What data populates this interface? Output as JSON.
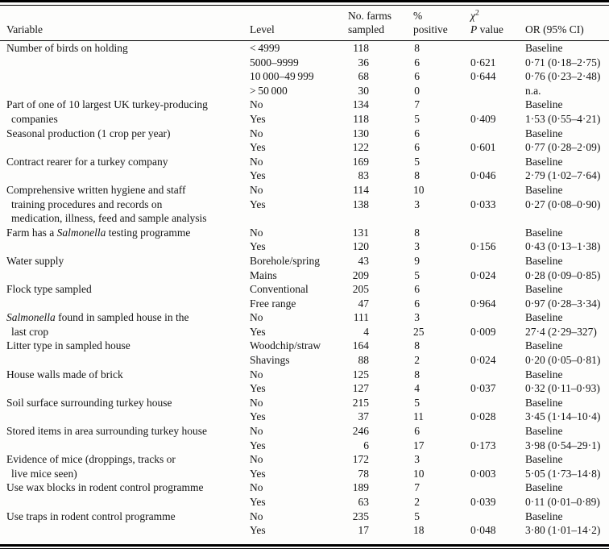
{
  "colors": {
    "paper": "#fdfdfc",
    "ink": "#151515",
    "rule": "#000000"
  },
  "table": {
    "header": {
      "variable": "Variable",
      "level": "Level",
      "farms_line1": "No. farms",
      "farms_line2": "sampled",
      "pct_line1": "%",
      "pct_line2": "positive",
      "chi_sq": [
        {
          "t": "χ",
          "i": true
        },
        {
          "t": "2",
          "sup": true
        }
      ],
      "p_value": [
        {
          "t": "P",
          "i": true
        },
        {
          "t": " value"
        }
      ],
      "or_ci": "OR (95% CI)"
    },
    "rows": [
      {
        "var": [
          {
            "t": "Number of birds on holding"
          }
        ],
        "level": "< 4999",
        "n": "118",
        "pct": "8",
        "p": "",
        "or": "Baseline"
      },
      {
        "var": [],
        "level": "5000–9999",
        "n": "36",
        "pct": "6",
        "p": "0·621",
        "or": "0·71 (0·18–2·75)"
      },
      {
        "var": [],
        "level": "10 000–49 999",
        "n": "68",
        "pct": "6",
        "p": "0·644",
        "or": "0·76 (0·23–2·48)"
      },
      {
        "var": [],
        "level": "> 50 000",
        "n": "30",
        "pct": "0",
        "p": "",
        "or": "n.a."
      },
      {
        "var": [
          {
            "t": "Part of one of 10 largest UK turkey-producing"
          }
        ],
        "level": "No",
        "n": "134",
        "pct": "7",
        "p": "",
        "or": "Baseline"
      },
      {
        "var": [
          {
            "t": "companies"
          }
        ],
        "cont": true,
        "level": "Yes",
        "n": "118",
        "pct": "5",
        "p": "0·409",
        "or": "1·53 (0·55–4·21)"
      },
      {
        "var": [
          {
            "t": "Seasonal production (1 crop per year)"
          }
        ],
        "level": "No",
        "n": "130",
        "pct": "6",
        "p": "",
        "or": "Baseline"
      },
      {
        "var": [],
        "level": "Yes",
        "n": "122",
        "pct": "6",
        "p": "0·601",
        "or": "0·77 (0·28–2·09)"
      },
      {
        "var": [
          {
            "t": "Contract rearer for a turkey company"
          }
        ],
        "level": "No",
        "n": "169",
        "pct": "5",
        "p": "",
        "or": "Baseline"
      },
      {
        "var": [],
        "level": "Yes",
        "n": "83",
        "pct": "8",
        "p": "0·046",
        "or": "2·79 (1·02–7·64)"
      },
      {
        "var": [
          {
            "t": "Comprehensive written hygiene and staff"
          }
        ],
        "level": "No",
        "n": "114",
        "pct": "10",
        "p": "",
        "or": "Baseline"
      },
      {
        "var": [
          {
            "t": "training procedures and records on"
          }
        ],
        "cont": true,
        "level": "Yes",
        "n": "138",
        "pct": "3",
        "p": "0·033",
        "or": "0·27 (0·08–0·90)"
      },
      {
        "var": [
          {
            "t": "medication, illness, feed and sample analysis"
          }
        ],
        "cont": true,
        "level": "",
        "n": "",
        "pct": "",
        "p": "",
        "or": ""
      },
      {
        "var": [
          {
            "t": "Farm has a "
          },
          {
            "t": "Salmonella",
            "i": true
          },
          {
            "t": " testing programme"
          }
        ],
        "level": "No",
        "n": "131",
        "pct": "8",
        "p": "",
        "or": "Baseline"
      },
      {
        "var": [],
        "level": "Yes",
        "n": "120",
        "pct": "3",
        "p": "0·156",
        "or": "0·43 (0·13–1·38)"
      },
      {
        "var": [
          {
            "t": "Water supply"
          }
        ],
        "level": "Borehole/spring",
        "n": "43",
        "pct": "9",
        "p": "",
        "or": "Baseline"
      },
      {
        "var": [],
        "level": "Mains",
        "n": "209",
        "pct": "5",
        "p": "0·024",
        "or": "0·28 (0·09–0·85)"
      },
      {
        "var": [
          {
            "t": "Flock type sampled"
          }
        ],
        "level": "Conventional",
        "n": "205",
        "pct": "6",
        "p": "",
        "or": "Baseline"
      },
      {
        "var": [],
        "level": "Free range",
        "n": "47",
        "pct": "6",
        "p": "0·964",
        "or": "0·97 (0·28–3·34)"
      },
      {
        "var": [
          {
            "t": "Salmonella",
            "i": true
          },
          {
            "t": " found in sampled house in the"
          }
        ],
        "level": "No",
        "n": "111",
        "pct": "3",
        "p": "",
        "or": "Baseline"
      },
      {
        "var": [
          {
            "t": "last crop"
          }
        ],
        "cont": true,
        "level": "Yes",
        "n": "4",
        "pct": "25",
        "p": "0·009",
        "or": "27·4 (2·29–327)"
      },
      {
        "var": [
          {
            "t": "Litter type in sampled house"
          }
        ],
        "level": "Woodchip/straw",
        "n": "164",
        "pct": "8",
        "p": "",
        "or": "Baseline"
      },
      {
        "var": [],
        "level": "Shavings",
        "n": "88",
        "pct": "2",
        "p": "0·024",
        "or": "0·20 (0·05–0·81)"
      },
      {
        "var": [
          {
            "t": "House walls made of brick"
          }
        ],
        "level": "No",
        "n": "125",
        "pct": "8",
        "p": "",
        "or": "Baseline"
      },
      {
        "var": [],
        "level": "Yes",
        "n": "127",
        "pct": "4",
        "p": "0·037",
        "or": "0·32 (0·11–0·93)"
      },
      {
        "var": [
          {
            "t": "Soil surface surrounding turkey house"
          }
        ],
        "level": "No",
        "n": "215",
        "pct": "5",
        "p": "",
        "or": "Baseline"
      },
      {
        "var": [],
        "level": "Yes",
        "n": "37",
        "pct": "11",
        "p": "0·028",
        "or": "3·45 (1·14–10·4)"
      },
      {
        "var": [
          {
            "t": "Stored items in area surrounding turkey house"
          }
        ],
        "level": "No",
        "n": "246",
        "pct": "6",
        "p": "",
        "or": "Baseline"
      },
      {
        "var": [],
        "level": "Yes",
        "n": "6",
        "pct": "17",
        "p": "0·173",
        "or": "3·98 (0·54–29·1)"
      },
      {
        "var": [
          {
            "t": "Evidence of mice (droppings, tracks or"
          }
        ],
        "level": "No",
        "n": "172",
        "pct": "3",
        "p": "",
        "or": "Baseline"
      },
      {
        "var": [
          {
            "t": "live mice seen)"
          }
        ],
        "cont": true,
        "level": "Yes",
        "n": "78",
        "pct": "10",
        "p": "0·003",
        "or": "5·05 (1·73–14·8)"
      },
      {
        "var": [
          {
            "t": "Use wax blocks in rodent control programme"
          }
        ],
        "level": "No",
        "n": "189",
        "pct": "7",
        "p": "",
        "or": "Baseline"
      },
      {
        "var": [],
        "level": "Yes",
        "n": "63",
        "pct": "2",
        "p": "0·039",
        "or": "0·11 (0·01–0·89)"
      },
      {
        "var": [
          {
            "t": "Use traps in rodent control programme"
          }
        ],
        "level": "No",
        "n": "235",
        "pct": "5",
        "p": "",
        "or": "Baseline"
      },
      {
        "var": [],
        "level": "Yes",
        "n": "17",
        "pct": "18",
        "p": "0·048",
        "or": "3·80 (1·01–14·2)"
      }
    ]
  }
}
